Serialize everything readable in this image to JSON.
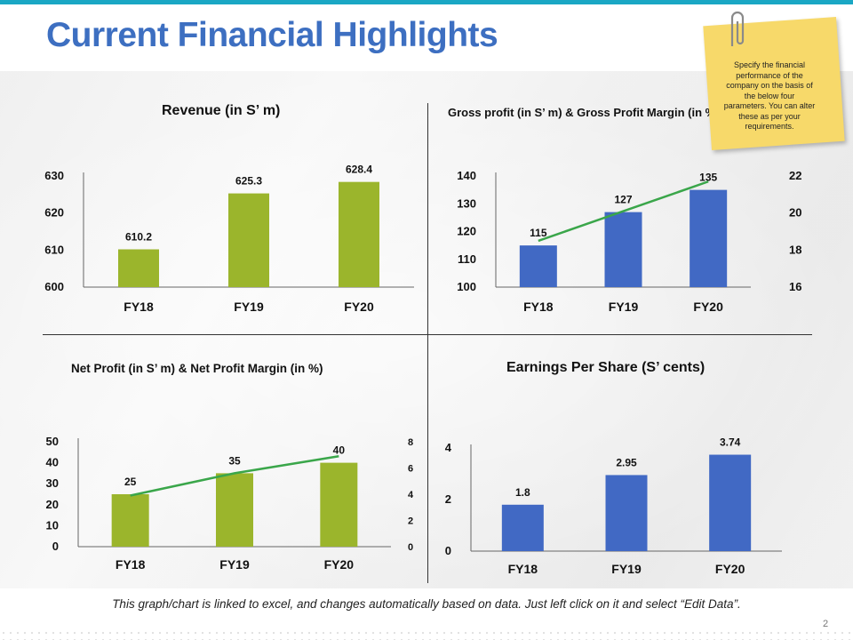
{
  "page": {
    "title": "Current Financial Highlights",
    "footnote": "This graph/chart is linked to excel, and changes automatically based on data. Just left click on it and select “Edit Data”.",
    "page_number": "2",
    "sticky_note": "Specify the financial performance of the company on the basis of the below four parameters. You can alter these as per your requirements.",
    "colors": {
      "title": "#3d6fc1",
      "accent_bar": "#1aa7c4",
      "green_bar": "#9bb52c",
      "blue_bar": "#4169c4",
      "line": "#3aa64a",
      "note": "#f7d96a"
    }
  },
  "chart_data": [
    {
      "id": "revenue",
      "type": "bar",
      "title": "Revenue (in S’ m)",
      "categories": [
        "FY18",
        "FY19",
        "FY20"
      ],
      "values": [
        610.2,
        625.3,
        628.4
      ],
      "value_labels": [
        "610.2",
        "625.3",
        "628.4"
      ],
      "ylim": [
        600,
        630
      ],
      "yticks": [
        600,
        610,
        620,
        630
      ],
      "color": "#9bb52c"
    },
    {
      "id": "gross",
      "type": "bar+line",
      "title": "Gross profit (in S’ m) & Gross Profit Margin (in %)",
      "categories": [
        "FY18",
        "FY19",
        "FY20"
      ],
      "values": [
        115,
        127,
        135
      ],
      "value_labels": [
        "115",
        "127",
        "135"
      ],
      "ylim": [
        100,
        140
      ],
      "yticks": [
        100,
        110,
        120,
        130,
        140
      ],
      "line_values": [
        18.5,
        20.1,
        21.7
      ],
      "y2lim": [
        16,
        22
      ],
      "y2ticks": [
        16,
        18,
        20,
        22
      ],
      "color": "#4169c4"
    },
    {
      "id": "net",
      "type": "bar+line",
      "title": "Net Profit (in S’ m) & Net Profit Margin (in %)",
      "categories": [
        "FY18",
        "FY19",
        "FY20"
      ],
      "values": [
        25,
        35,
        40
      ],
      "value_labels": [
        "25",
        "35",
        "40"
      ],
      "ylim": [
        0,
        50
      ],
      "yticks": [
        0,
        10,
        20,
        30,
        40,
        50
      ],
      "line_values": [
        3.9,
        5.6,
        6.9
      ],
      "y2lim": [
        0,
        8
      ],
      "y2ticks": [
        0,
        2,
        4,
        6,
        8
      ],
      "color": "#9bb52c"
    },
    {
      "id": "eps",
      "type": "bar",
      "title": "Earnings Per Share (S’ cents)",
      "categories": [
        "FY18",
        "FY19",
        "FY20"
      ],
      "values": [
        1.8,
        2.95,
        3.74
      ],
      "value_labels": [
        "1.8",
        "2.95",
        "3.74"
      ],
      "ylim": [
        0,
        4
      ],
      "yticks": [
        0,
        2,
        4
      ],
      "color": "#4169c4"
    }
  ]
}
